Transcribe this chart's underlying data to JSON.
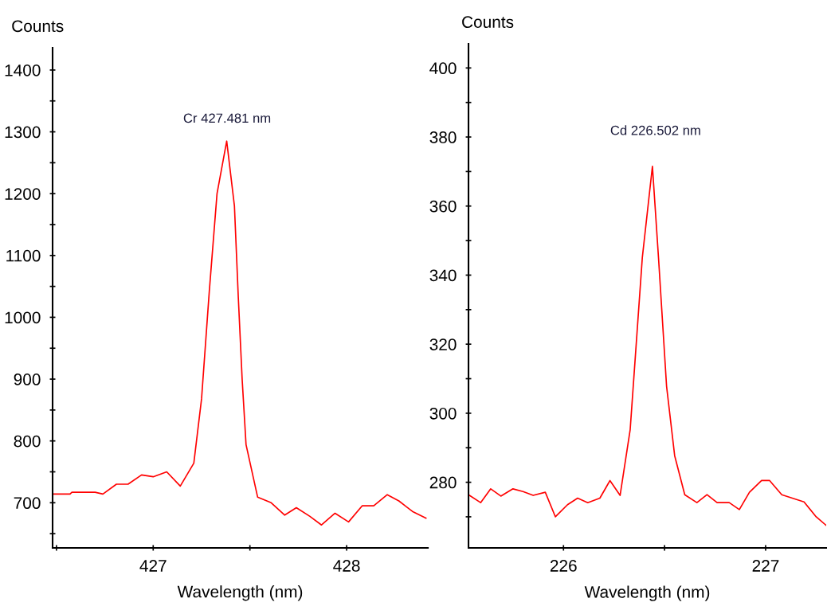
{
  "chart_data": [
    {
      "type": "line",
      "ylabel": "Counts",
      "xlabel": "Wavelength (nm)",
      "annotations": [
        "Cr 427.481 nm"
      ],
      "xlim": [
        426.48,
        428.42
      ],
      "ylim": [
        627,
        1436
      ],
      "xticks": [
        {
          "value": 426.5,
          "label": null
        },
        427,
        {
          "value": 427.5,
          "label": null
        },
        428
      ],
      "yticks": [
        {
          "value": 650,
          "label": null
        },
        700,
        {
          "value": 750,
          "label": null
        },
        800,
        {
          "value": 850,
          "label": null
        },
        900,
        {
          "value": 950,
          "label": null
        },
        1000,
        {
          "value": 1050,
          "label": null
        },
        1100,
        {
          "value": 1150,
          "label": null
        },
        1200,
        {
          "value": 1250,
          "label": null
        },
        1300,
        {
          "value": 1350,
          "label": null
        },
        1400
      ],
      "grid": false,
      "legend": false,
      "marker": "none",
      "line_style": "solid",
      "series": [
        {
          "color": "#ff0000",
          "x": [
            426.48,
            426.57,
            426.58,
            426.7,
            426.74,
            426.81,
            426.87,
            426.94,
            427.0,
            427.07,
            427.14,
            427.21,
            427.25,
            427.29,
            427.33,
            427.38,
            427.42,
            427.44,
            427.46,
            427.48,
            427.54,
            427.61,
            427.68,
            427.74,
            427.81,
            427.87,
            427.94,
            428.01,
            428.08,
            428.14,
            428.21,
            428.27,
            428.34,
            428.41
          ],
          "values": [
            714,
            714,
            717,
            717,
            714,
            730,
            730,
            745,
            742,
            750,
            727,
            764,
            868,
            1042,
            1200,
            1285,
            1180,
            1032,
            899,
            794,
            709,
            700,
            680,
            692,
            678,
            664,
            683,
            669,
            695,
            695,
            713,
            703,
            686,
            675
          ]
        }
      ]
    },
    {
      "type": "line",
      "ylabel": "Counts",
      "xlabel": "Wavelength (nm)",
      "annotations": [
        "Cd 226.502 nm"
      ],
      "xlim": [
        225.53,
        227.3
      ],
      "ylim": [
        261,
        407
      ],
      "xticks": [
        226,
        {
          "value": 226.5,
          "label": null
        },
        227
      ],
      "yticks": [
        {
          "value": 270,
          "label": null
        },
        280,
        {
          "value": 290,
          "label": null
        },
        300,
        {
          "value": 310,
          "label": null
        },
        320,
        {
          "value": 330,
          "label": null
        },
        340,
        {
          "value": 350,
          "label": null
        },
        360,
        {
          "value": 370,
          "label": null
        },
        380,
        {
          "value": 390,
          "label": null
        },
        400
      ],
      "grid": false,
      "legend": false,
      "marker": "none",
      "line_style": "solid",
      "series": [
        {
          "color": "#ff0000",
          "x": [
            225.53,
            225.59,
            225.64,
            225.69,
            225.75,
            225.8,
            225.85,
            225.91,
            225.96,
            226.02,
            226.07,
            226.12,
            226.18,
            226.23,
            226.28,
            226.33,
            226.39,
            226.44,
            226.47,
            226.51,
            226.55,
            226.6,
            226.66,
            226.71,
            226.76,
            226.82,
            226.87,
            226.92,
            226.98,
            227.02,
            227.08,
            227.19,
            227.25,
            227.3
          ],
          "values": [
            276.4,
            274.1,
            278.1,
            276,
            278.1,
            277.3,
            276.2,
            277.1,
            270,
            273.5,
            275.4,
            274.1,
            275.4,
            280.5,
            276.2,
            295.3,
            345.1,
            371.5,
            345.1,
            307.8,
            287.7,
            276.4,
            274.1,
            276.4,
            274.1,
            274.1,
            272.1,
            277.1,
            280.5,
            280.5,
            276.4,
            274.3,
            270,
            267.5
          ]
        }
      ]
    }
  ]
}
